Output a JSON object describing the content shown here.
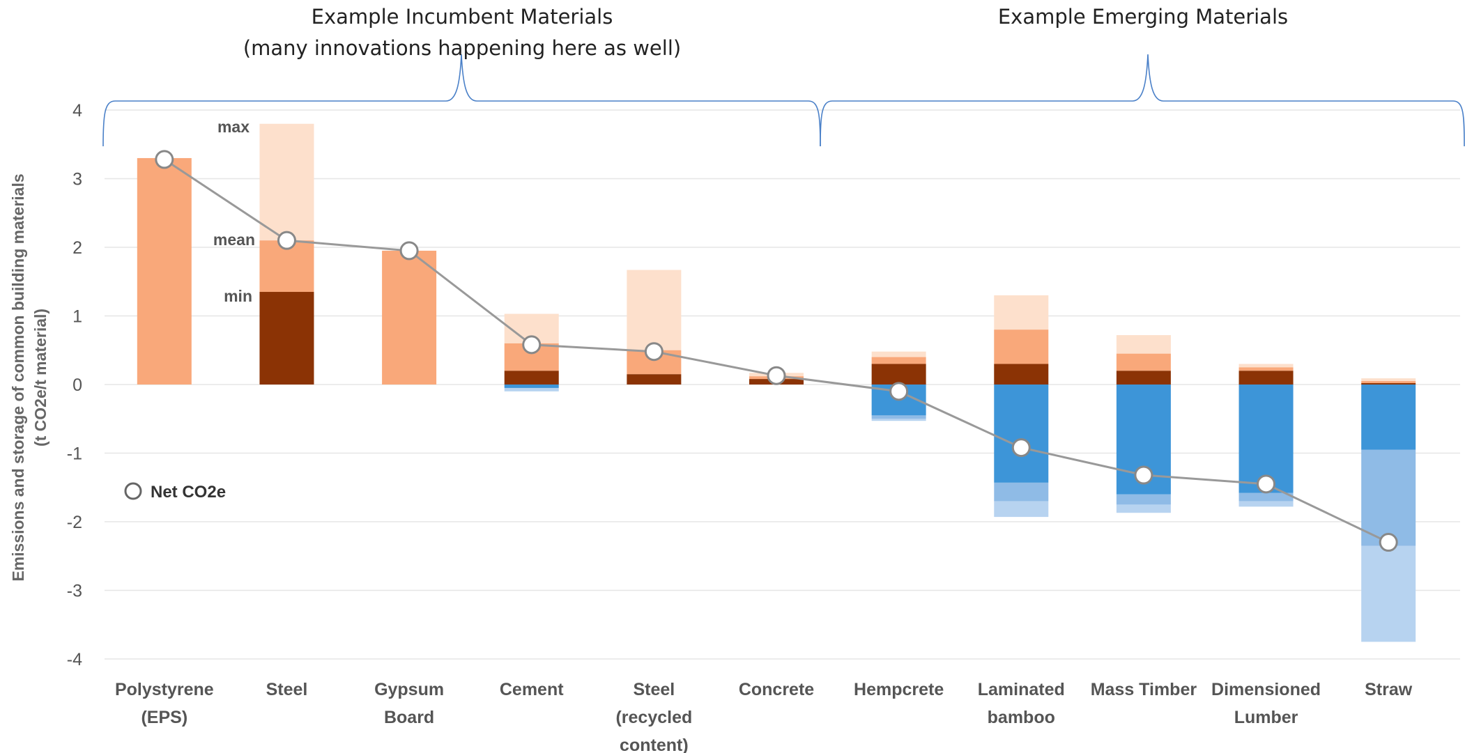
{
  "colors": {
    "emission_max": "#fde0cc",
    "emission_mean": "#f9a87a",
    "emission_min": "#8b3305",
    "storage_main": "#3d95d8",
    "storage_mid": "#8fbbe6",
    "storage_light": "#b7d3f0",
    "net_line": "#999999",
    "bracket": "#4a80c8",
    "grid": "#e6e6e6"
  },
  "groups": {
    "incumbent_title_line1": "Example Incumbent Materials",
    "incumbent_title_line2": "(many innovations happening here as well)",
    "emerging_title": "Example Emerging Materials"
  },
  "chart_data": {
    "type": "bar",
    "title": "",
    "ylabel_line1": "Emissions and storage of common building materials",
    "ylabel_line2": "(t CO2e/t material)",
    "ylim": [
      -4,
      4
    ],
    "yticks": [
      "4",
      "3",
      "2",
      "1",
      "0",
      "-1",
      "-2",
      "-3",
      "-4"
    ],
    "grid": true,
    "annotations": {
      "max": "max",
      "mean": "mean",
      "min": "min"
    },
    "legend": {
      "label": "Net CO2e",
      "placement": "left"
    },
    "categories": [
      {
        "label": [
          "Polystyrene",
          "(EPS)"
        ],
        "emission": {
          "min": 3.3,
          "mean": 3.3,
          "max": 3.3
        },
        "storage": {
          "main": 0,
          "mid": 0,
          "light": 0
        },
        "net": 3.28
      },
      {
        "label": [
          "Steel"
        ],
        "emission": {
          "min": 1.35,
          "mean": 2.1,
          "max": 3.8
        },
        "storage": {
          "main": 0,
          "mid": 0,
          "light": 0
        },
        "net": 2.1
      },
      {
        "label": [
          "Gypsum",
          "Board"
        ],
        "emission": {
          "min": 1.95,
          "mean": 1.95,
          "max": 1.95
        },
        "storage": {
          "main": 0,
          "mid": 0,
          "light": 0
        },
        "net": 1.95
      },
      {
        "label": [
          "Cement"
        ],
        "emission": {
          "min": 0.2,
          "mean": 0.6,
          "max": 1.03
        },
        "storage": {
          "main": -0.05,
          "mid": -0.05,
          "light": -0.1
        },
        "net": 0.58
      },
      {
        "label": [
          "Steel",
          "(recycled",
          "content)"
        ],
        "emission": {
          "min": 0.15,
          "mean": 0.5,
          "max": 1.67
        },
        "storage": {
          "main": 0,
          "mid": 0,
          "light": 0
        },
        "net": 0.48
      },
      {
        "label": [
          "Concrete"
        ],
        "emission": {
          "min": 0.08,
          "mean": 0.12,
          "max": 0.17
        },
        "storage": {
          "main": 0,
          "mid": 0,
          "light": 0
        },
        "net": 0.13
      },
      {
        "label": [
          "Hempcrete"
        ],
        "emission": {
          "min": 0.3,
          "mean": 0.4,
          "max": 0.48
        },
        "storage": {
          "main": -0.45,
          "mid": -0.5,
          "light": -0.53
        },
        "net": -0.1
      },
      {
        "label": [
          "Laminated",
          "bamboo"
        ],
        "emission": {
          "min": 0.3,
          "mean": 0.8,
          "max": 1.3
        },
        "storage": {
          "main": -1.43,
          "mid": -1.7,
          "light": -1.93
        },
        "net": -0.92
      },
      {
        "label": [
          "Mass Timber"
        ],
        "emission": {
          "min": 0.2,
          "mean": 0.45,
          "max": 0.72
        },
        "storage": {
          "main": -1.6,
          "mid": -1.75,
          "light": -1.87
        },
        "net": -1.32
      },
      {
        "label": [
          "Dimensioned",
          "Lumber"
        ],
        "emission": {
          "min": 0.2,
          "mean": 0.25,
          "max": 0.3
        },
        "storage": {
          "main": -1.58,
          "mid": -1.7,
          "light": -1.78
        },
        "net": -1.45
      },
      {
        "label": [
          "Straw"
        ],
        "emission": {
          "min": 0.02,
          "mean": 0.05,
          "max": 0.09
        },
        "storage": {
          "main": -0.95,
          "mid": -2.35,
          "light": -3.75
        },
        "net": -2.3
      }
    ]
  }
}
